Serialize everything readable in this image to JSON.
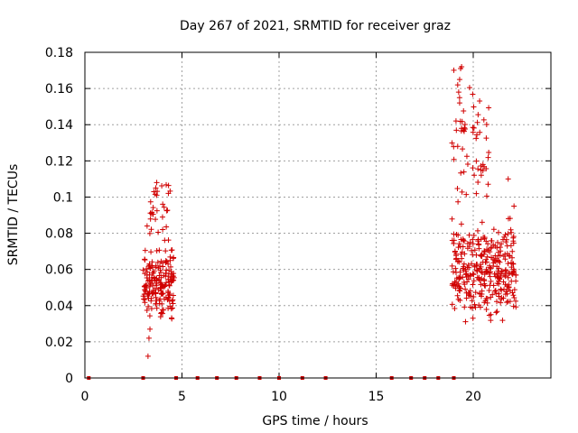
{
  "chart_data": {
    "type": "scatter",
    "title": "Day 267 of 2021, SRMTID for receiver graz",
    "xlabel": "GPS time / hours",
    "ylabel": "SRMTID / TECUs",
    "xlim": [
      0,
      24
    ],
    "ylim": [
      0,
      0.18
    ],
    "xticks": [
      0,
      5,
      10,
      15,
      20
    ],
    "yticks": [
      0,
      0.02,
      0.04,
      0.06,
      0.08,
      0.1,
      0.12,
      0.14,
      0.16,
      0.18
    ],
    "xtick_labels": [
      "0",
      "5",
      "10",
      "15",
      "20"
    ],
    "ytick_labels": [
      "0",
      "0.02",
      "0.04",
      "0.06",
      "0.08",
      "0.1",
      "0.12",
      "0.14",
      "0.16",
      "0.18"
    ],
    "grid": true,
    "marker": "+",
    "color": "#d00000",
    "series": [
      {
        "name": "SRMTID",
        "clusters": [
          {
            "x_range": [
              3.0,
              4.6
            ],
            "y_range": [
              0.03,
              0.075
            ],
            "count": 180
          },
          {
            "x_range": [
              3.2,
              4.4
            ],
            "y_range": [
              0.075,
              0.11
            ],
            "count": 30
          },
          {
            "x_range": [
              18.9,
              22.2
            ],
            "y_range": [
              0.03,
              0.09
            ],
            "count": 330
          },
          {
            "x_range": [
              18.9,
              20.8
            ],
            "y_range": [
              0.09,
              0.175
            ],
            "count": 55
          }
        ],
        "points": [
          [
            3.25,
            0.012
          ],
          [
            3.3,
            0.022
          ],
          [
            3.35,
            0.027
          ],
          [
            3.7,
            0.108
          ],
          [
            3.65,
            0.105
          ],
          [
            4.3,
            0.102
          ],
          [
            19.4,
            0.172
          ],
          [
            19.35,
            0.171
          ],
          [
            19.3,
            0.165
          ],
          [
            19.2,
            0.162
          ],
          [
            19.25,
            0.158
          ],
          [
            19.3,
            0.152
          ],
          [
            19.4,
            0.138
          ],
          [
            19.5,
            0.137
          ],
          [
            19.2,
            0.128
          ],
          [
            21.8,
            0.11
          ],
          [
            22.1,
            0.095
          ],
          [
            21.1,
            0.065
          ],
          [
            20.5,
            0.118
          ],
          [
            20.4,
            0.115
          ]
        ],
        "baseline_x": [
          0.2,
          3.0,
          4.7,
          5.8,
          6.8,
          7.8,
          9.0,
          10.0,
          11.2,
          12.4,
          15.8,
          16.8,
          17.5,
          18.2,
          19.0
        ],
        "baseline_y": 0
      }
    ]
  }
}
